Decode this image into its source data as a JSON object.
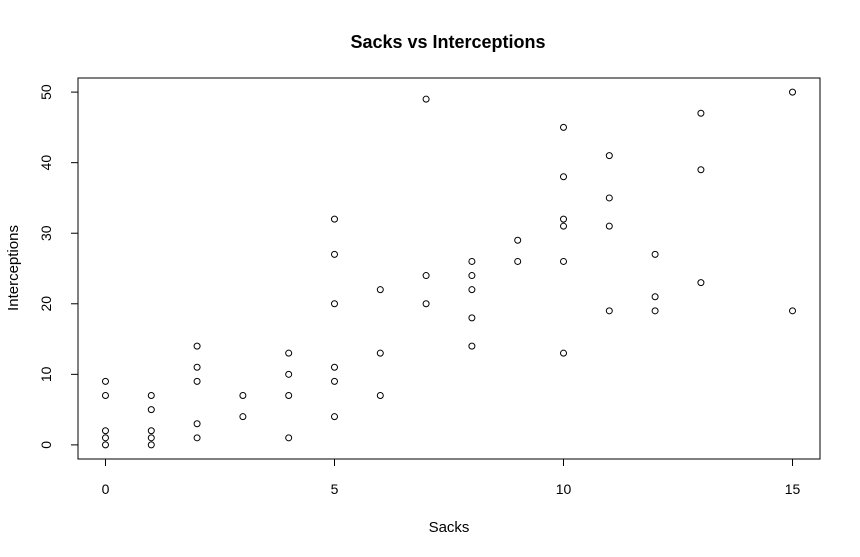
{
  "chart_data": {
    "type": "scatter",
    "title": "Sacks vs Interceptions",
    "xlabel": "Sacks",
    "ylabel": "Interceptions",
    "xlim": [
      -0.6,
      15.6
    ],
    "ylim": [
      -2,
      52
    ],
    "xticks": [
      0,
      5,
      10,
      15
    ],
    "yticks": [
      0,
      10,
      20,
      30,
      40,
      50
    ],
    "grid": false,
    "legend": "none",
    "points": [
      {
        "x": 0,
        "y": 0
      },
      {
        "x": 0,
        "y": 1
      },
      {
        "x": 0,
        "y": 2
      },
      {
        "x": 0,
        "y": 7
      },
      {
        "x": 0,
        "y": 9
      },
      {
        "x": 1,
        "y": 0
      },
      {
        "x": 1,
        "y": 1
      },
      {
        "x": 1,
        "y": 2
      },
      {
        "x": 1,
        "y": 5
      },
      {
        "x": 1,
        "y": 7
      },
      {
        "x": 2,
        "y": 1
      },
      {
        "x": 2,
        "y": 3
      },
      {
        "x": 2,
        "y": 9
      },
      {
        "x": 2,
        "y": 11
      },
      {
        "x": 2,
        "y": 14
      },
      {
        "x": 3,
        "y": 4
      },
      {
        "x": 3,
        "y": 7
      },
      {
        "x": 4,
        "y": 1
      },
      {
        "x": 4,
        "y": 7
      },
      {
        "x": 4,
        "y": 10
      },
      {
        "x": 4,
        "y": 13
      },
      {
        "x": 5,
        "y": 4
      },
      {
        "x": 5,
        "y": 9
      },
      {
        "x": 5,
        "y": 11
      },
      {
        "x": 5,
        "y": 20
      },
      {
        "x": 5,
        "y": 27
      },
      {
        "x": 5,
        "y": 32
      },
      {
        "x": 6,
        "y": 7
      },
      {
        "x": 6,
        "y": 13
      },
      {
        "x": 6,
        "y": 22
      },
      {
        "x": 7,
        "y": 20
      },
      {
        "x": 7,
        "y": 24
      },
      {
        "x": 7,
        "y": 49
      },
      {
        "x": 8,
        "y": 14
      },
      {
        "x": 8,
        "y": 18
      },
      {
        "x": 8,
        "y": 22
      },
      {
        "x": 8,
        "y": 24
      },
      {
        "x": 8,
        "y": 26
      },
      {
        "x": 9,
        "y": 26
      },
      {
        "x": 9,
        "y": 29
      },
      {
        "x": 10,
        "y": 13
      },
      {
        "x": 10,
        "y": 26
      },
      {
        "x": 10,
        "y": 31
      },
      {
        "x": 10,
        "y": 32
      },
      {
        "x": 10,
        "y": 38
      },
      {
        "x": 10,
        "y": 45
      },
      {
        "x": 11,
        "y": 19
      },
      {
        "x": 11,
        "y": 31
      },
      {
        "x": 11,
        "y": 35
      },
      {
        "x": 11,
        "y": 41
      },
      {
        "x": 12,
        "y": 19
      },
      {
        "x": 12,
        "y": 21
      },
      {
        "x": 12,
        "y": 27
      },
      {
        "x": 13,
        "y": 23
      },
      {
        "x": 13,
        "y": 39
      },
      {
        "x": 13,
        "y": 47
      },
      {
        "x": 15,
        "y": 19
      },
      {
        "x": 15,
        "y": 50
      }
    ]
  }
}
